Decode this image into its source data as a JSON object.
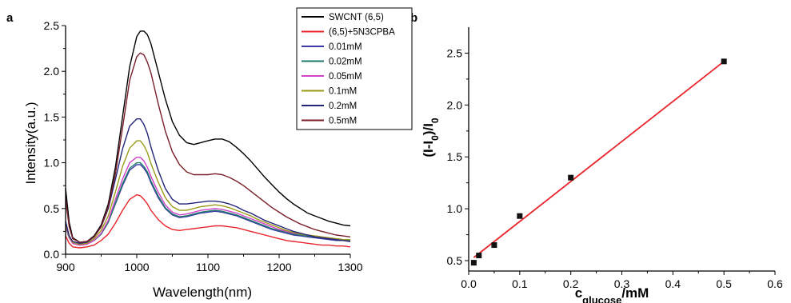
{
  "chart_data": [
    {
      "panel": "a",
      "type": "line",
      "title": "",
      "xlabel": "Wavelength(nm)",
      "ylabel": "Intensity(a.u.)",
      "xlim": [
        900,
        1300
      ],
      "ylim": [
        0,
        2.5
      ],
      "xticks": [
        "900",
        "1000",
        "1100",
        "1200",
        "1300"
      ],
      "yticks": [
        "0.0",
        "0.5",
        "1.0",
        "1.5",
        "2.0",
        "2.5"
      ],
      "grid": false,
      "legend_position": "top-right",
      "series": [
        {
          "name": "SWCNT (6,5)",
          "color": "#000000",
          "x": [
            900,
            905,
            910,
            920,
            930,
            940,
            950,
            960,
            970,
            980,
            990,
            1000,
            1005,
            1010,
            1015,
            1020,
            1030,
            1040,
            1050,
            1060,
            1070,
            1080,
            1090,
            1100,
            1110,
            1120,
            1130,
            1140,
            1150,
            1160,
            1170,
            1180,
            1190,
            1200,
            1210,
            1220,
            1230,
            1240,
            1250,
            1260,
            1270,
            1280,
            1290,
            1300
          ],
          "y": [
            0.72,
            0.35,
            0.18,
            0.13,
            0.14,
            0.2,
            0.32,
            0.55,
            0.95,
            1.5,
            2.05,
            2.38,
            2.44,
            2.44,
            2.4,
            2.3,
            2.0,
            1.7,
            1.45,
            1.3,
            1.22,
            1.2,
            1.22,
            1.24,
            1.26,
            1.26,
            1.23,
            1.17,
            1.1,
            1.02,
            0.93,
            0.84,
            0.76,
            0.68,
            0.61,
            0.55,
            0.5,
            0.45,
            0.42,
            0.39,
            0.36,
            0.34,
            0.32,
            0.31
          ]
        },
        {
          "name": "(6,5)+5N3CPBA",
          "color": "#e8252c",
          "x": [
            900,
            905,
            910,
            920,
            930,
            940,
            950,
            960,
            970,
            980,
            990,
            1000,
            1005,
            1010,
            1015,
            1020,
            1030,
            1040,
            1050,
            1060,
            1070,
            1080,
            1090,
            1100,
            1110,
            1120,
            1130,
            1140,
            1150,
            1160,
            1170,
            1180,
            1190,
            1200,
            1210,
            1220,
            1230,
            1240,
            1250,
            1260,
            1270,
            1280,
            1290,
            1300
          ],
          "y": [
            0.2,
            0.12,
            0.08,
            0.07,
            0.08,
            0.1,
            0.15,
            0.22,
            0.34,
            0.48,
            0.6,
            0.65,
            0.64,
            0.6,
            0.55,
            0.48,
            0.38,
            0.31,
            0.27,
            0.26,
            0.27,
            0.28,
            0.29,
            0.3,
            0.31,
            0.31,
            0.3,
            0.29,
            0.27,
            0.25,
            0.23,
            0.21,
            0.19,
            0.17,
            0.15,
            0.14,
            0.13,
            0.12,
            0.11,
            0.1,
            0.1,
            0.09,
            0.09,
            0.08
          ]
        },
        {
          "name": "0.01mM",
          "color": "#3a3aa8",
          "x": [
            900,
            905,
            910,
            920,
            930,
            940,
            950,
            960,
            970,
            980,
            990,
            1000,
            1005,
            1010,
            1015,
            1020,
            1030,
            1040,
            1050,
            1060,
            1070,
            1080,
            1090,
            1100,
            1110,
            1120,
            1130,
            1140,
            1150,
            1160,
            1170,
            1180,
            1190,
            1200,
            1210,
            1220,
            1230,
            1240,
            1250,
            1260,
            1270,
            1280,
            1290,
            1300
          ],
          "y": [
            0.3,
            0.18,
            0.12,
            0.1,
            0.11,
            0.15,
            0.22,
            0.35,
            0.55,
            0.75,
            0.92,
            0.98,
            0.98,
            0.94,
            0.88,
            0.78,
            0.62,
            0.5,
            0.43,
            0.4,
            0.41,
            0.43,
            0.45,
            0.46,
            0.47,
            0.46,
            0.44,
            0.42,
            0.39,
            0.36,
            0.33,
            0.3,
            0.27,
            0.25,
            0.23,
            0.21,
            0.2,
            0.19,
            0.18,
            0.17,
            0.16,
            0.15,
            0.15,
            0.14
          ]
        },
        {
          "name": "0.02mM",
          "color": "#1c7a6a",
          "x": [
            900,
            905,
            910,
            920,
            930,
            940,
            950,
            960,
            970,
            980,
            990,
            1000,
            1005,
            1010,
            1015,
            1020,
            1030,
            1040,
            1050,
            1060,
            1070,
            1080,
            1090,
            1100,
            1110,
            1120,
            1130,
            1140,
            1150,
            1160,
            1170,
            1180,
            1190,
            1200,
            1210,
            1220,
            1230,
            1240,
            1250,
            1260,
            1270,
            1280,
            1290,
            1300
          ],
          "y": [
            0.3,
            0.18,
            0.12,
            0.1,
            0.11,
            0.15,
            0.22,
            0.35,
            0.56,
            0.77,
            0.94,
            1.0,
            1.0,
            0.96,
            0.9,
            0.8,
            0.64,
            0.51,
            0.44,
            0.41,
            0.42,
            0.44,
            0.46,
            0.47,
            0.48,
            0.47,
            0.45,
            0.43,
            0.4,
            0.37,
            0.34,
            0.31,
            0.28,
            0.26,
            0.24,
            0.22,
            0.21,
            0.2,
            0.19,
            0.18,
            0.17,
            0.16,
            0.15,
            0.15
          ]
        },
        {
          "name": "0.05mM",
          "color": "#d040c8",
          "x": [
            900,
            905,
            910,
            920,
            930,
            940,
            950,
            960,
            970,
            980,
            990,
            1000,
            1005,
            1010,
            1015,
            1020,
            1030,
            1040,
            1050,
            1060,
            1070,
            1080,
            1090,
            1100,
            1110,
            1120,
            1130,
            1140,
            1150,
            1160,
            1170,
            1180,
            1190,
            1200,
            1210,
            1220,
            1230,
            1240,
            1250,
            1260,
            1270,
            1280,
            1290,
            1300
          ],
          "y": [
            0.31,
            0.18,
            0.12,
            0.1,
            0.11,
            0.15,
            0.23,
            0.37,
            0.6,
            0.82,
            1.0,
            1.06,
            1.06,
            1.02,
            0.95,
            0.85,
            0.68,
            0.54,
            0.46,
            0.43,
            0.44,
            0.46,
            0.48,
            0.49,
            0.5,
            0.49,
            0.47,
            0.45,
            0.42,
            0.39,
            0.36,
            0.33,
            0.3,
            0.27,
            0.25,
            0.23,
            0.22,
            0.21,
            0.2,
            0.19,
            0.18,
            0.17,
            0.16,
            0.16
          ]
        },
        {
          "name": "0.1mM",
          "color": "#9a9a1a",
          "x": [
            900,
            905,
            910,
            920,
            930,
            940,
            950,
            960,
            970,
            980,
            990,
            1000,
            1005,
            1010,
            1015,
            1020,
            1030,
            1040,
            1050,
            1060,
            1070,
            1080,
            1090,
            1100,
            1110,
            1120,
            1130,
            1140,
            1150,
            1160,
            1170,
            1180,
            1190,
            1200,
            1210,
            1220,
            1230,
            1240,
            1250,
            1260,
            1270,
            1280,
            1290,
            1300
          ],
          "y": [
            0.33,
            0.19,
            0.13,
            0.11,
            0.12,
            0.17,
            0.26,
            0.42,
            0.68,
            0.96,
            1.16,
            1.24,
            1.24,
            1.19,
            1.11,
            0.99,
            0.79,
            0.62,
            0.52,
            0.48,
            0.48,
            0.5,
            0.52,
            0.53,
            0.54,
            0.53,
            0.51,
            0.48,
            0.45,
            0.42,
            0.38,
            0.35,
            0.32,
            0.29,
            0.26,
            0.24,
            0.22,
            0.21,
            0.2,
            0.19,
            0.18,
            0.17,
            0.16,
            0.16
          ]
        },
        {
          "name": "0.2mM",
          "color": "#23237a",
          "x": [
            900,
            905,
            910,
            920,
            930,
            940,
            950,
            960,
            970,
            980,
            990,
            1000,
            1005,
            1010,
            1015,
            1020,
            1030,
            1040,
            1050,
            1060,
            1070,
            1080,
            1090,
            1100,
            1110,
            1120,
            1130,
            1140,
            1150,
            1160,
            1170,
            1180,
            1190,
            1200,
            1210,
            1220,
            1230,
            1240,
            1250,
            1260,
            1270,
            1280,
            1290,
            1300
          ],
          "y": [
            0.36,
            0.2,
            0.14,
            0.12,
            0.13,
            0.19,
            0.3,
            0.5,
            0.82,
            1.15,
            1.4,
            1.48,
            1.48,
            1.42,
            1.32,
            1.17,
            0.92,
            0.72,
            0.6,
            0.55,
            0.55,
            0.56,
            0.57,
            0.58,
            0.58,
            0.57,
            0.55,
            0.52,
            0.48,
            0.45,
            0.41,
            0.37,
            0.34,
            0.31,
            0.28,
            0.25,
            0.23,
            0.21,
            0.19,
            0.18,
            0.17,
            0.16,
            0.15,
            0.14
          ]
        },
        {
          "name": "0.5mM",
          "color": "#7a1f2a",
          "x": [
            900,
            905,
            910,
            920,
            930,
            940,
            950,
            960,
            970,
            980,
            990,
            1000,
            1005,
            1010,
            1015,
            1020,
            1030,
            1040,
            1050,
            1060,
            1070,
            1080,
            1090,
            1100,
            1110,
            1120,
            1130,
            1140,
            1150,
            1160,
            1170,
            1180,
            1190,
            1200,
            1210,
            1220,
            1230,
            1240,
            1250,
            1260,
            1270,
            1280,
            1290,
            1300
          ],
          "y": [
            0.6,
            0.3,
            0.17,
            0.13,
            0.14,
            0.19,
            0.3,
            0.52,
            0.88,
            1.38,
            1.9,
            2.16,
            2.2,
            2.18,
            2.1,
            1.98,
            1.65,
            1.35,
            1.12,
            0.98,
            0.9,
            0.87,
            0.87,
            0.87,
            0.88,
            0.87,
            0.84,
            0.8,
            0.75,
            0.69,
            0.63,
            0.57,
            0.51,
            0.46,
            0.41,
            0.37,
            0.33,
            0.3,
            0.27,
            0.25,
            0.23,
            0.21,
            0.2,
            0.19
          ]
        }
      ]
    },
    {
      "panel": "b",
      "type": "scatter",
      "title": "",
      "xlabel_main": "c",
      "xlabel_sub": "glucose",
      "xlabel_tail": "/mM",
      "ylabel_main": "(I-I",
      "ylabel_sub1": "0",
      "ylabel_mid": ")/I",
      "ylabel_sub2": "0",
      "xlim": [
        0.0,
        0.6
      ],
      "ylim": [
        0.4,
        2.75
      ],
      "xticks": [
        "0.0",
        "0.1",
        "0.2",
        "0.3",
        "0.4",
        "0.5",
        "0.6"
      ],
      "yticks": [
        "0.5",
        "1.0",
        "1.5",
        "2.0",
        "2.5"
      ],
      "grid": false,
      "points": {
        "color": "#111111",
        "x": [
          0.01,
          0.02,
          0.05,
          0.1,
          0.2,
          0.5
        ],
        "y": [
          0.48,
          0.55,
          0.65,
          0.93,
          1.3,
          2.42
        ]
      },
      "fit": {
        "color": "#e8252c",
        "x": [
          0.01,
          0.5
        ],
        "y": [
          0.53,
          2.42
        ]
      }
    }
  ]
}
